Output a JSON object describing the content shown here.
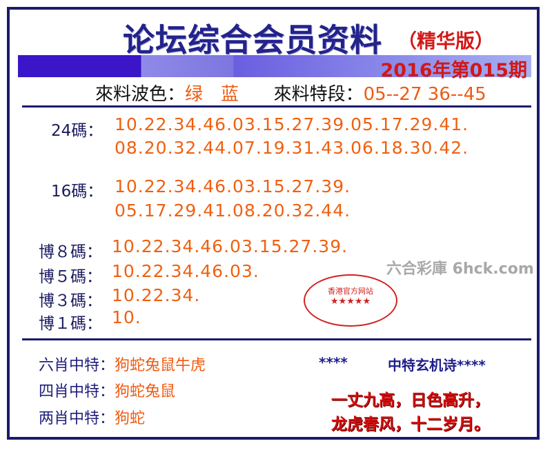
{
  "header": {
    "title": "论坛综合会员资料",
    "edition": "（精华版）",
    "issue": "2016年第015期"
  },
  "info": {
    "wave_label": "來料波色：",
    "wave_value": "绿　蓝",
    "segment_label": "來料特段：",
    "segment_value": "05--27  36--45"
  },
  "stamp": {
    "text": "香港官方网站",
    "stars": "★★★★★"
  },
  "watermark": "六合彩庫 6hck.com",
  "groups": [
    {
      "label": "24碼：",
      "lines": [
        "10.22.34.46.03.15.27.39.05.17.29.41.",
        "08.20.32.44.07.19.31.43.06.18.30.42."
      ]
    },
    {
      "label": "16碼：",
      "lines": [
        "10.22.34.46.03.15.27.39.",
        "05.17.29.41.08.20.32.44."
      ]
    },
    {
      "label": "博８碼：",
      "lines": [
        "10.22.34.46.03.15.27.39."
      ]
    },
    {
      "label": "博５碼：",
      "lines": [
        "10.22.34.46.03."
      ]
    },
    {
      "label": "博３碼：",
      "lines": [
        "10.22.34."
      ]
    },
    {
      "label": "博１碼：",
      "lines": [
        "10."
      ]
    }
  ],
  "zodiac": [
    {
      "label": "六肖中特：",
      "value": "狗蛇兔鼠牛虎"
    },
    {
      "label": "四肖中特：",
      "value": "狗蛇兔鼠"
    },
    {
      "label": "两肖中特：",
      "value": "狗蛇"
    }
  ],
  "poem": {
    "left_stars": "****",
    "heading": "中特玄机诗****",
    "line1": "一丈九高，日色高升，",
    "line2": "龙虎春风，十二岁月。"
  }
}
